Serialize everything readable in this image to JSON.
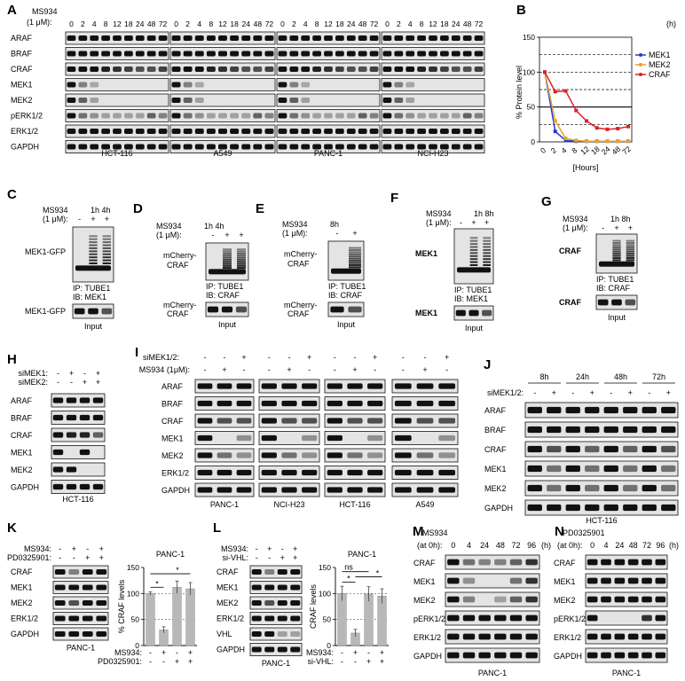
{
  "panels": {
    "A": {
      "letter": "A",
      "treat": "MS934",
      "conc": "(1 μM):",
      "unit": "(h)",
      "times": [
        "0",
        "2",
        "4",
        "8",
        "12",
        "18",
        "24",
        "48",
        "72"
      ],
      "rows": [
        "ARAF",
        "BRAF",
        "CRAF",
        "MEK1",
        "MEK2",
        "pERK1/2",
        "ERK1/2",
        "GAPDH"
      ],
      "lines": [
        "HCT-116",
        "A549",
        "PANC-1",
        "NCI-H23"
      ]
    },
    "B": {
      "letter": "B",
      "ylabel": "% Protein level",
      "xlabel": "[Hours]",
      "yticks": [
        "0",
        "50",
        "100",
        "150"
      ],
      "xticks": [
        "0",
        "2",
        "4",
        "8",
        "12",
        "18",
        "24",
        "48",
        "72"
      ]
    },
    "C": {
      "letter": "C",
      "treat": "MS934",
      "conc": "(1 μM):",
      "times": "1h 4h",
      "signs": [
        "-",
        "+",
        "+"
      ],
      "protein": "MEK1-GFP",
      "ip": "IP: TUBE1",
      "ib": "IB: MEK1",
      "input_label": "MEK1-GFP",
      "input": "Input"
    },
    "D": {
      "letter": "D",
      "treat": "MS934",
      "conc": "(1 μM):",
      "times": "1h 4h",
      "signs": [
        "-",
        "+",
        "+"
      ],
      "protein1": "mCherry-",
      "protein2": "CRAF",
      "ip": "IP: TUBE1",
      "ib": "IB: CRAF",
      "input1": "mCherry-",
      "input2": "CRAF",
      "input": "Input"
    },
    "E": {
      "letter": "E",
      "treat": "MS934",
      "conc": "(1 μM):",
      "times": "8h",
      "signs": [
        "-",
        "+"
      ],
      "protein1": "mCherry-",
      "protein2": "CRAF",
      "ip": "IP: TUBE1",
      "ib": "IB: CRAF",
      "input1": "mCherry-",
      "input2": "CRAF",
      "input": "Input"
    },
    "F": {
      "letter": "F",
      "treat": "MS934",
      "conc": "(1 μM):",
      "times": "1h 8h",
      "signs": [
        "-",
        "+",
        "+"
      ],
      "protein": "MEK1",
      "ip": "IP: TUBE1",
      "ib": "IB: MEK1",
      "input_label": "MEK1",
      "input": "Input"
    },
    "G": {
      "letter": "G",
      "treat": "MS934",
      "conc": "(1 μM):",
      "times": "1h 8h",
      "signs": [
        "-",
        "+",
        "+"
      ],
      "protein": "CRAF",
      "ip": "IP: TUBE1",
      "ib": "IB: CRAF",
      "input_label": "CRAF",
      "input": "Input"
    },
    "H": {
      "letter": "H",
      "cond1": "siMEK1:",
      "cond2": "siMEK2:",
      "signs1": [
        "-",
        "+",
        "-",
        "+"
      ],
      "signs2": [
        "-",
        "-",
        "+",
        "+"
      ],
      "rows": [
        "ARAF",
        "BRAF",
        "CRAF",
        "MEK1",
        "MEK2",
        "GAPDH"
      ],
      "line": "HCT-116"
    },
    "I": {
      "letter": "I",
      "cond1": "siMEK1/2:",
      "cond2": "MS934 (1μM):",
      "signs1": [
        "-",
        "-",
        "+"
      ],
      "signs2": [
        "-",
        "+",
        "-"
      ],
      "rows": [
        "ARAF",
        "BRAF",
        "CRAF",
        "MEK1",
        "MEK2",
        "ERK1/2",
        "GAPDH"
      ],
      "lines": [
        "PANC-1",
        "NCI-H23",
        "HCT-116",
        "A549"
      ]
    },
    "J": {
      "letter": "J",
      "times": [
        "8h",
        "24h",
        "48h",
        "72h"
      ],
      "cond": "siMEK1/2:",
      "signs": [
        "-",
        "+",
        "-",
        "+",
        "-",
        "+",
        "-",
        "+"
      ],
      "rows": [
        "ARAF",
        "BRAF",
        "CRAF",
        "MEK1",
        "MEK2",
        "GAPDH"
      ],
      "line": "HCT-116"
    },
    "K": {
      "letter": "K",
      "cond1": "MS934:",
      "cond2": "PD0325901:",
      "signs1": [
        "-",
        "+",
        "-",
        "+"
      ],
      "signs2": [
        "-",
        "-",
        "+",
        "+"
      ],
      "rows": [
        "CRAF",
        "MEK1",
        "MEK2",
        "ERK1/2",
        "GAPDH"
      ],
      "line": "PANC-1",
      "chart_title": "PANC-1",
      "ylabel": "% CRAF levels",
      "yticks": [
        "0",
        "50",
        "100",
        "150"
      ],
      "sig": [
        "*",
        "*"
      ]
    },
    "L": {
      "letter": "L",
      "cond1": "MS934:",
      "cond2": "si-VHL:",
      "signs1": [
        "-",
        "+",
        "-",
        "+"
      ],
      "signs2": [
        "-",
        "-",
        "+",
        "+"
      ],
      "rows": [
        "CRAF",
        "MEK1",
        "MEK2",
        "ERK1/2",
        "VHL",
        "GAPDH"
      ],
      "line": "PANC-1",
      "chart_title": "PANC-1",
      "ylabel": "CRAF levels",
      "yticks": [
        "0",
        "50",
        "100",
        "150"
      ],
      "sig": [
        "ns",
        "*",
        "*"
      ]
    },
    "M": {
      "letter": "M",
      "treat": "MS934",
      "at": "(at 0h):",
      "times": [
        "0",
        "4",
        "24",
        "48",
        "72",
        "96"
      ],
      "unit": "(h)",
      "rows": [
        "CRAF",
        "MEK1",
        "MEK2",
        "pERK1/2",
        "ERK1/2",
        "GAPDH"
      ],
      "line": "PANC-1"
    },
    "N": {
      "letter": "N",
      "treat": "PD0325901",
      "at": "(at 0h):",
      "times": [
        "0",
        "4",
        "24",
        "48",
        "72",
        "96"
      ],
      "unit": "(h)",
      "rows": [
        "CRAF",
        "MEK1",
        "MEK2",
        "pERK1/2",
        "ERK1/2",
        "GAPDH"
      ],
      "line": "PANC-1"
    }
  },
  "chart_data": [
    {
      "type": "line",
      "panel": "B",
      "ylabel": "% Protein level",
      "xlabel": "[Hours]",
      "x": [
        "0",
        "2",
        "4",
        "8",
        "12",
        "18",
        "24",
        "48",
        "72"
      ],
      "ylim": [
        0,
        150
      ],
      "reference_lines": [
        25,
        50,
        75,
        100,
        125
      ],
      "legend": "right",
      "series": [
        {
          "name": "MEK1",
          "color": "#1f3fd0",
          "values": [
            100,
            15,
            2,
            1,
            1,
            1,
            1,
            1,
            1
          ]
        },
        {
          "name": "MEK2",
          "color": "#e8a030",
          "values": [
            100,
            30,
            5,
            2,
            1,
            1,
            1,
            1,
            1
          ]
        },
        {
          "name": "CRAF",
          "color": "#d8222a",
          "values": [
            100,
            72,
            73,
            45,
            30,
            20,
            18,
            19,
            22
          ]
        }
      ]
    },
    {
      "type": "bar",
      "panel": "K",
      "title": "PANC-1",
      "ylabel": "% CRAF levels",
      "categories": [
        "1",
        "2",
        "3",
        "4"
      ],
      "values": [
        100,
        30,
        112,
        109
      ],
      "errors": [
        3,
        6,
        12,
        12
      ],
      "ylim": [
        0,
        150
      ],
      "reference_lines": [
        50,
        100
      ],
      "xconds": {
        "MS934:": [
          "-",
          "+",
          "-",
          "+"
        ],
        "PD0325901:": [
          "-",
          "-",
          "+",
          "+"
        ]
      }
    },
    {
      "type": "bar",
      "panel": "L",
      "title": "PANC-1",
      "ylabel": "CRAF levels",
      "categories": [
        "1",
        "2",
        "3",
        "4"
      ],
      "values": [
        100,
        24,
        99,
        95
      ],
      "errors": [
        14,
        7,
        14,
        14
      ],
      "ylim": [
        0,
        150
      ],
      "reference_lines": [
        50,
        100
      ],
      "xconds": {
        "MS934:": [
          "-",
          "+",
          "-",
          "+"
        ],
        "si-VHL:": [
          "-",
          "-",
          "+",
          "+"
        ]
      }
    }
  ]
}
